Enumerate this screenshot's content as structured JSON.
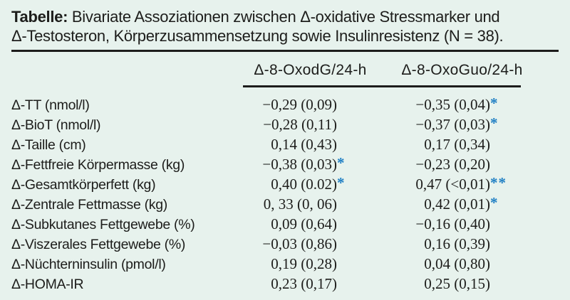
{
  "colors": {
    "background": "#e7f2ed",
    "rule": "#1d1d1b",
    "text": "#1d1d1b",
    "significance_blue": "#2180c4"
  },
  "table": {
    "title_prefix": "Tabelle:",
    "title_line1_rest": " Bivariate Assoziationen zwischen Δ-oxidative Stressmarker und",
    "title_line2": "Δ-Testosteron, Körperzusammensetzung sowie Insulinresistenz (N = 38).",
    "columns": [
      "Δ-8-OxodG/24-h",
      "Δ-8-OxoGuo/24-h"
    ],
    "rows": [
      {
        "label": "Δ-TT (nmol/l)",
        "col1": "−0,29 (0,09)",
        "col1_sig": "",
        "col2": "−0,35 (0,04)",
        "col2_sig": "*"
      },
      {
        "label": "Δ-BioT (nmol/l)",
        "col1": "−0,28 (0,11)",
        "col1_sig": "",
        "col2": "−0,37 (0,03)",
        "col2_sig": "*"
      },
      {
        "label": "Δ-Taille (cm)",
        "col1": "0,14 (0,43)",
        "col1_sig": "",
        "col2": "0,17 (0,34)",
        "col2_sig": ""
      },
      {
        "label": "Δ-Fettfreie Körpermasse (kg)",
        "col1": "−0,38 (0,03)",
        "col1_sig": "*",
        "col2": "−0,23 (0,20)",
        "col2_sig": ""
      },
      {
        "label": "Δ-Gesamtkörperfett (kg)",
        "col1": "0,40 (0.02)",
        "col1_sig": "*",
        "col2": "0,47 (<0,01)",
        "col2_sig": "**"
      },
      {
        "label": "Δ-Zentrale Fettmasse (kg)",
        "col1": "0, 33 (0, 06)",
        "col1_sig": "",
        "col2": "0,42 (0,01)",
        "col2_sig": "*"
      },
      {
        "label": "Δ-Subkutanes Fettgewebe (%)",
        "col1": "0,09 (0,64)",
        "col1_sig": "",
        "col2": "−0,16 (0,40)",
        "col2_sig": ""
      },
      {
        "label": "Δ-Viszerales Fettgewebe (%)",
        "col1": "−0,03 (0,86)",
        "col1_sig": "",
        "col2": "0,16 (0,39)",
        "col2_sig": ""
      },
      {
        "label": "Δ-Nüchterninsulin (pmol/l)",
        "col1": "0,19 (0,28)",
        "col1_sig": "",
        "col2": "0,04 (0,80)",
        "col2_sig": ""
      },
      {
        "label": "Δ-HOMA-IR",
        "col1": "0,23 (0,17)",
        "col1_sig": "",
        "col2": "0,25 (0,15)",
        "col2_sig": ""
      }
    ]
  }
}
